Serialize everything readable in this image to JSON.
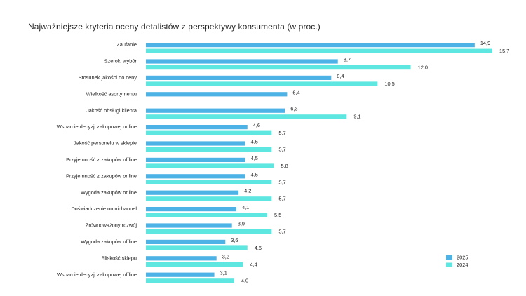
{
  "chart_data": {
    "type": "bar",
    "orientation": "horizontal",
    "title": "Najważniejsze kryteria oceny detalistów z perspektywy konsumenta (w proc.)",
    "xlabel": "",
    "ylabel": "",
    "xlim": [
      0,
      15.7
    ],
    "grid": false,
    "legend_position": "bottom-right",
    "categories": [
      "Zaufanie",
      "Szeroki wybór",
      "Stosunek jakości do ceny",
      "Wielkość asortymentu",
      "Jakość obsługi klienta",
      "Wsparcie decyzji zakupowej online",
      "Jakość personelu w sklepie",
      "Przyjemność z zakupów offline",
      "Przyjemność z zakupów online",
      "Wygoda zakupów online",
      "Doświadczenie omnichannel",
      "Zrównoważony rozwój",
      "Wygoda zakupów offline",
      "Bliskość sklepu",
      "Wsparcie decyzji zakupowej offline"
    ],
    "series": [
      {
        "name": "2025",
        "color": "#4db3e6",
        "values": [
          14.9,
          8.7,
          8.4,
          6.4,
          6.3,
          4.6,
          4.5,
          4.5,
          4.5,
          4.2,
          4.1,
          3.9,
          3.6,
          3.2,
          3.1
        ],
        "labels": [
          "14,9",
          "8,7",
          "8,4",
          "6,4",
          "6,3",
          "4,6",
          "4,5",
          "4,5",
          "4,5",
          "4,2",
          "4,1",
          "3,9",
          "3,6",
          "3,2",
          "3,1"
        ]
      },
      {
        "name": "2024",
        "color": "#5ee6e0",
        "values": [
          15.7,
          12.0,
          10.5,
          null,
          9.1,
          5.7,
          5.7,
          5.8,
          5.7,
          5.7,
          5.5,
          5.7,
          4.6,
          4.4,
          4.0
        ],
        "labels": [
          "15,7",
          "12,0",
          "10,5",
          "",
          "9,1",
          "5,7",
          "5,7",
          "5,8",
          "5,7",
          "5,7",
          "5,5",
          "5,7",
          "4,6",
          "4,4",
          "4,0"
        ]
      }
    ]
  }
}
